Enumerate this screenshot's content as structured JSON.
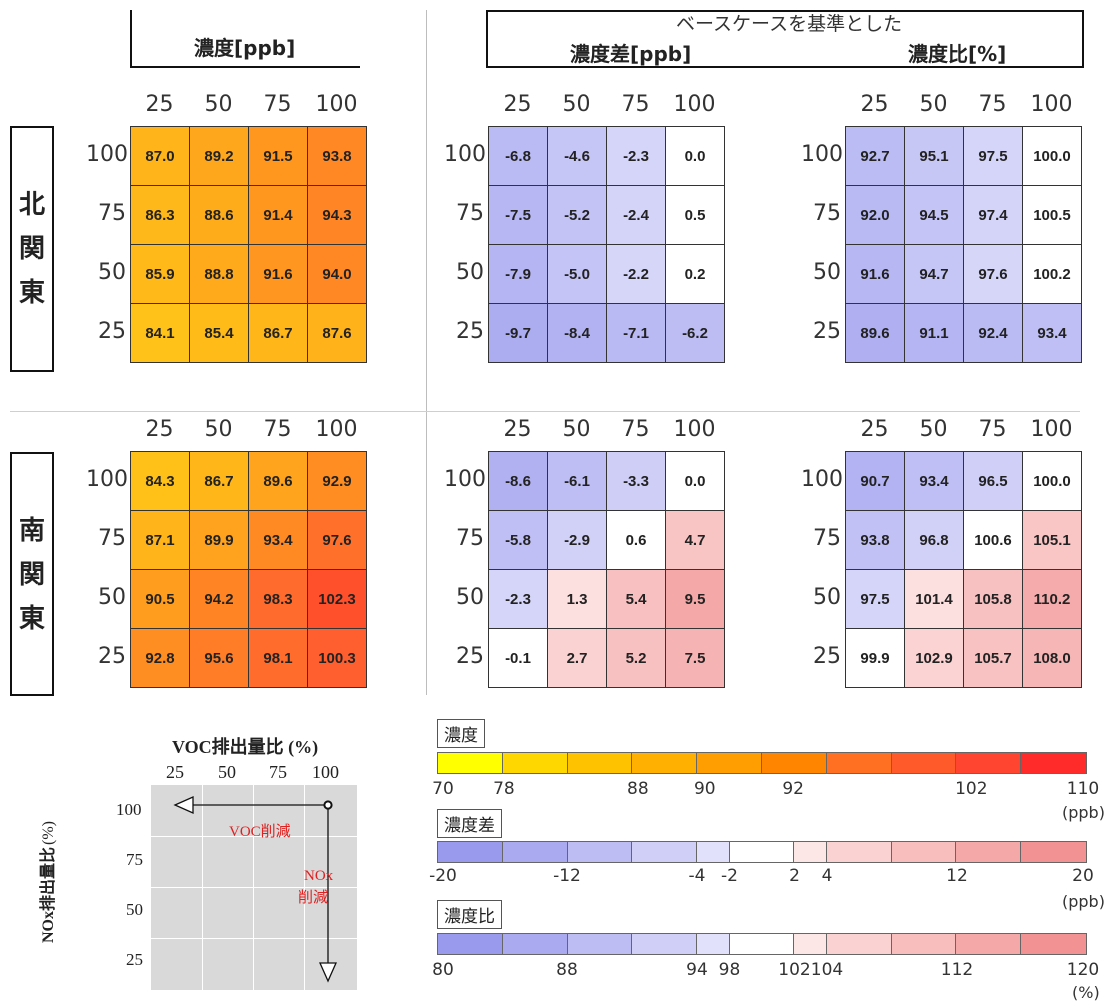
{
  "headers": {
    "concentration": "濃度[ppb]",
    "diff_subtitle": "ベースケースを基準とした",
    "difference": "濃度差[ppb]",
    "ratio": "濃度比[%]"
  },
  "axes": {
    "voc_ticks": [
      "25",
      "50",
      "75",
      "100"
    ],
    "nox_ticks": [
      "100",
      "75",
      "50",
      "25"
    ]
  },
  "regions": [
    {
      "name_chars": [
        "北",
        "関",
        "東"
      ]
    },
    {
      "name_chars": [
        "南",
        "関",
        "東"
      ]
    }
  ],
  "chart_data": [
    {
      "type": "heatmap",
      "region": "北関東",
      "panel": "濃度[ppb]",
      "x": [
        25,
        50,
        75,
        100
      ],
      "y": [
        100,
        75,
        50,
        25
      ],
      "values": [
        [
          87.0,
          89.2,
          91.5,
          93.8
        ],
        [
          86.3,
          88.6,
          91.4,
          94.3
        ],
        [
          85.9,
          88.8,
          91.6,
          94.0
        ],
        [
          84.1,
          85.4,
          86.7,
          87.6
        ]
      ],
      "labels": [
        [
          "87.0",
          "89.2",
          "91.5",
          "93.8"
        ],
        [
          "86.3",
          "88.6",
          "91.4",
          "94.3"
        ],
        [
          "85.9",
          "88.8",
          "91.6",
          "94.0"
        ],
        [
          "84.1",
          "85.4",
          "86.7",
          "87.6"
        ]
      ]
    },
    {
      "type": "heatmap",
      "region": "北関東",
      "panel": "濃度差[ppb]",
      "x": [
        25,
        50,
        75,
        100
      ],
      "y": [
        100,
        75,
        50,
        25
      ],
      "values": [
        [
          -6.8,
          -4.6,
          -2.3,
          0.0
        ],
        [
          -7.5,
          -5.2,
          -2.4,
          0.5
        ],
        [
          -7.9,
          -5.0,
          -2.2,
          0.2
        ],
        [
          -9.7,
          -8.4,
          -7.1,
          -6.2
        ]
      ],
      "labels": [
        [
          "-6.8",
          "-4.6",
          "-2.3",
          "0.0"
        ],
        [
          "-7.5",
          "-5.2",
          "-2.4",
          "0.5"
        ],
        [
          "-7.9",
          "-5.0",
          "-2.2",
          "0.2"
        ],
        [
          "-9.7",
          "-8.4",
          "-7.1",
          "-6.2"
        ]
      ]
    },
    {
      "type": "heatmap",
      "region": "北関東",
      "panel": "濃度比[%]",
      "x": [
        25,
        50,
        75,
        100
      ],
      "y": [
        100,
        75,
        50,
        25
      ],
      "values": [
        [
          92.7,
          95.1,
          97.5,
          100.0
        ],
        [
          92.0,
          94.5,
          97.4,
          100.5
        ],
        [
          91.6,
          94.7,
          97.6,
          100.2
        ],
        [
          89.6,
          91.1,
          92.4,
          93.4
        ]
      ],
      "labels": [
        [
          "92.7",
          "95.1",
          "97.5",
          "100.0"
        ],
        [
          "92.0",
          "94.5",
          "97.4",
          "100.5"
        ],
        [
          "91.6",
          "94.7",
          "97.6",
          "100.2"
        ],
        [
          "89.6",
          "91.1",
          "92.4",
          "93.4"
        ]
      ]
    },
    {
      "type": "heatmap",
      "region": "南関東",
      "panel": "濃度[ppb]",
      "x": [
        25,
        50,
        75,
        100
      ],
      "y": [
        100,
        75,
        50,
        25
      ],
      "values": [
        [
          84.3,
          86.7,
          89.6,
          92.9
        ],
        [
          87.1,
          89.9,
          93.4,
          97.6
        ],
        [
          90.5,
          94.2,
          98.3,
          102.3
        ],
        [
          92.8,
          95.6,
          98.1,
          100.3
        ]
      ],
      "labels": [
        [
          "84.3",
          "86.7",
          "89.6",
          "92.9"
        ],
        [
          "87.1",
          "89.9",
          "93.4",
          "97.6"
        ],
        [
          "90.5",
          "94.2",
          "98.3",
          "102.3"
        ],
        [
          "92.8",
          "95.6",
          "98.1",
          "100.3"
        ]
      ]
    },
    {
      "type": "heatmap",
      "region": "南関東",
      "panel": "濃度差[ppb]",
      "x": [
        25,
        50,
        75,
        100
      ],
      "y": [
        100,
        75,
        50,
        25
      ],
      "values": [
        [
          -8.6,
          -6.1,
          -3.3,
          0.0
        ],
        [
          -5.8,
          -2.9,
          0.6,
          4.7
        ],
        [
          -2.3,
          1.3,
          5.4,
          9.5
        ],
        [
          -0.1,
          2.7,
          5.2,
          7.5
        ]
      ],
      "labels": [
        [
          "-8.6",
          "-6.1",
          "-3.3",
          "0.0"
        ],
        [
          "-5.8",
          "-2.9",
          "0.6",
          "4.7"
        ],
        [
          "-2.3",
          "1.3",
          "5.4",
          "9.5"
        ],
        [
          "-0.1",
          "2.7",
          "5.2",
          "7.5"
        ]
      ]
    },
    {
      "type": "heatmap",
      "region": "南関東",
      "panel": "濃度比[%]",
      "x": [
        25,
        50,
        75,
        100
      ],
      "y": [
        100,
        75,
        50,
        25
      ],
      "values": [
        [
          90.7,
          93.4,
          96.5,
          100.0
        ],
        [
          93.8,
          96.8,
          100.6,
          105.1
        ],
        [
          97.5,
          101.4,
          105.8,
          110.2
        ],
        [
          99.9,
          102.9,
          105.7,
          108.0
        ]
      ],
      "labels": [
        [
          "90.7",
          "93.4",
          "96.5",
          "100.0"
        ],
        [
          "93.8",
          "96.8",
          "100.6",
          "105.1"
        ],
        [
          "97.5",
          "101.4",
          "105.8",
          "110.2"
        ],
        [
          "99.9",
          "102.9",
          "105.7",
          "108.0"
        ]
      ]
    }
  ],
  "explainer": {
    "x_title": "VOC排出量比 (%)",
    "y_title_main": "NOx排出量比",
    "y_title_unit": "(%)",
    "x_ticks": [
      "25",
      "50",
      "75",
      "100"
    ],
    "y_ticks": [
      "100",
      "75",
      "50",
      "25"
    ],
    "voc_reduction": "VOC削減",
    "nox_label_1": "NOx",
    "nox_label_2": "削減"
  },
  "legends": {
    "concentration": {
      "title": "濃度",
      "unit": "(ppb)",
      "labels": [
        "70",
        "78",
        "88",
        "90",
        "92",
        "102",
        "110"
      ],
      "colors": [
        "#ffff00",
        "#ffd700",
        "#ffc200",
        "#ffb000",
        "#ff9e00",
        "#ff8500",
        "#ff7022",
        "#ff5a2a",
        "#ff4430",
        "#ff2a2a"
      ]
    },
    "difference": {
      "title": "濃度差",
      "unit": "(ppb)",
      "labels": [
        "-20",
        "-12",
        "-4",
        "-2",
        "2",
        "4",
        "12",
        "20"
      ],
      "colors": [
        "#9999ee",
        "#aaaaf0",
        "#bdbdf4",
        "#cfcff7",
        "#e1e1fb",
        "#ffffff",
        "#fde6e6",
        "#fbd2d2",
        "#f8bebe",
        "#f5a8a8",
        "#f29292"
      ]
    },
    "ratio": {
      "title": "濃度比",
      "unit": "(%)",
      "labels": [
        "80",
        "88",
        "94",
        "98",
        "102",
        "104",
        "112",
        "120"
      ],
      "colors": [
        "#9999ee",
        "#aaaaf0",
        "#bdbdf4",
        "#cfcff7",
        "#e1e1fb",
        "#ffffff",
        "#fde6e6",
        "#fbd2d2",
        "#f8bebe",
        "#f5a8a8",
        "#f29292"
      ]
    }
  }
}
